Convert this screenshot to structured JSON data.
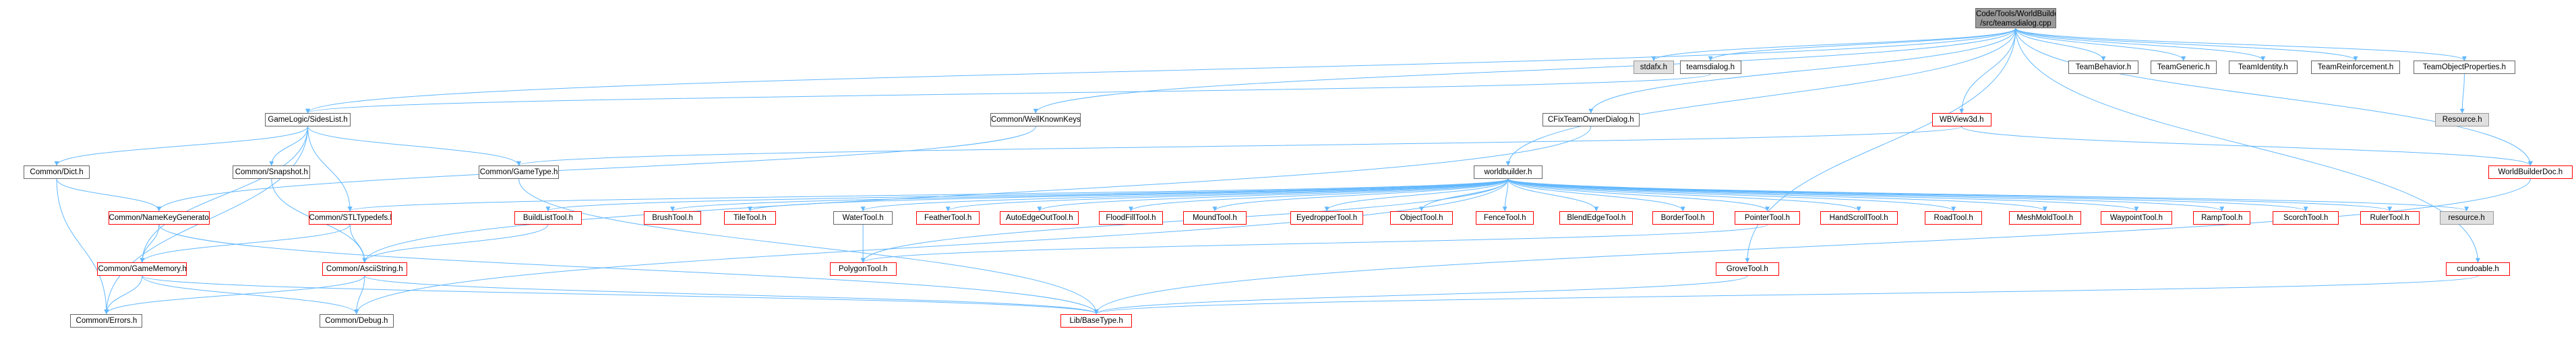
{
  "diagram": {
    "root_title_line1": "Code/Tools/WorldBuilder",
    "root_title_line2": "/src/teamsdialog.cpp",
    "colors": {
      "edge": "#63b8ff",
      "box_border": "#666666",
      "missing_border": "#ff0000",
      "undoc_fill": "#e0e0e0",
      "root_fill": "#999999"
    },
    "nodes": {
      "stdafx": "stdafx.h",
      "teamsdialog": "teamsdialog.h",
      "sideslist": "GameLogic/SidesList.h",
      "wellknownkeys": "Common/WellKnownKeys.h",
      "teamownerdialog": "CFixTeamOwnerDialog.h",
      "wbview3d": "WBView3d.h",
      "teambehavior": "TeamBehavior.h",
      "teamgeneric": "TeamGeneric.h",
      "teamidentity": "TeamIdentity.h",
      "teamreinforcement": "TeamReinforcement.h",
      "teamobjectproperties": "TeamObjectProperties.h",
      "resource_top": "Resource.h",
      "dict": "Common/Dict.h",
      "snapshot": "Common/Snapshot.h",
      "gametype": "Common/GameType.h",
      "worldbuilder": "worldbuilder.h",
      "worldbuilderdoc": "WorldBuilderDoc.h",
      "namekeygenerator": "Common/NameKeyGenerator.h",
      "stltypedefs": "Common/STLTypedefs.h",
      "buildlisttool": "BuildListTool.h",
      "brushtool": "BrushTool.h",
      "tiletool": "TileTool.h",
      "watertool": "WaterTool.h",
      "feathertool": "FeatherTool.h",
      "autoedgeouttool": "AutoEdgeOutTool.h",
      "floodfilltool": "FloodFillTool.h",
      "moundtool": "MoundTool.h",
      "eyedroppertool": "EyedropperTool.h",
      "objecttool": "ObjectTool.h",
      "fencetool": "FenceTool.h",
      "blendedgetool": "BlendEdgeTool.h",
      "bordertool": "BorderTool.h",
      "pointertool": "PointerTool.h",
      "handscrolltool": "HandScrollTool.h",
      "roadtool": "RoadTool.h",
      "meshmoldtool": "MeshMoldTool.h",
      "waypointtool": "WaypointTool.h",
      "ramptool": "RampTool.h",
      "scorchtool": "ScorchTool.h",
      "rulertool": "RulerTool.h",
      "resource_mid": "resource.h",
      "gamememory": "Common/GameMemory.h",
      "asciistring": "Common/AsciiString.h",
      "polygontool": "PolygonTool.h",
      "grovetool": "GroveTool.h",
      "cundoable": "cundoable.h",
      "errors": "Common/Errors.h",
      "debug": "Common/Debug.h",
      "basetype": "Lib/BaseType.h"
    }
  }
}
